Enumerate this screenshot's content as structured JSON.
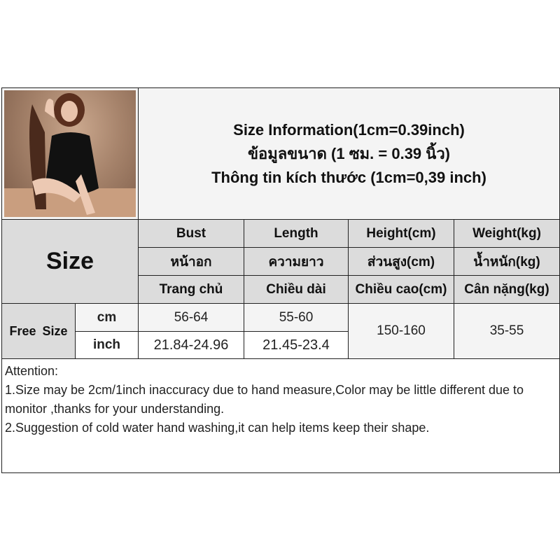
{
  "title_lines": [
    "Size Information(1cm=0.39inch)",
    "ข้อมูลขนาด (1 ซม. = 0.39 นิ้ว)",
    "Thông tin kích thước (1cm=0,39 inch)"
  ],
  "size_label": "Size",
  "columns": [
    {
      "en": "Bust",
      "th": "หน้าอก",
      "vi": "Trang chủ"
    },
    {
      "en": "Length",
      "th": "ความยาว",
      "vi": "Chiều dài"
    },
    {
      "en": "Height(cm)",
      "th": "ส่วนสูง(cm)",
      "vi": "Chiều cao(cm)"
    },
    {
      "en": "Weight(kg)",
      "th": "น้ำหนัก(kg)",
      "vi": "Cân nặng(kg)"
    }
  ],
  "size_name": "Free Size",
  "units": [
    "cm",
    "inch"
  ],
  "bust": [
    "56-64",
    "21.84-24.96"
  ],
  "length": [
    "55-60",
    "21.45-23.4"
  ],
  "height": "150-160",
  "weight": "35-55",
  "attention": {
    "heading": "Attention:",
    "lines": [
      "1.Size may be 2cm/1inch inaccuracy due to hand measure,Color may be little different due to monitor ,thanks for your understanding.",
      "2.Suggestion of cold water hand washing,it can help items keep their shape."
    ]
  }
}
